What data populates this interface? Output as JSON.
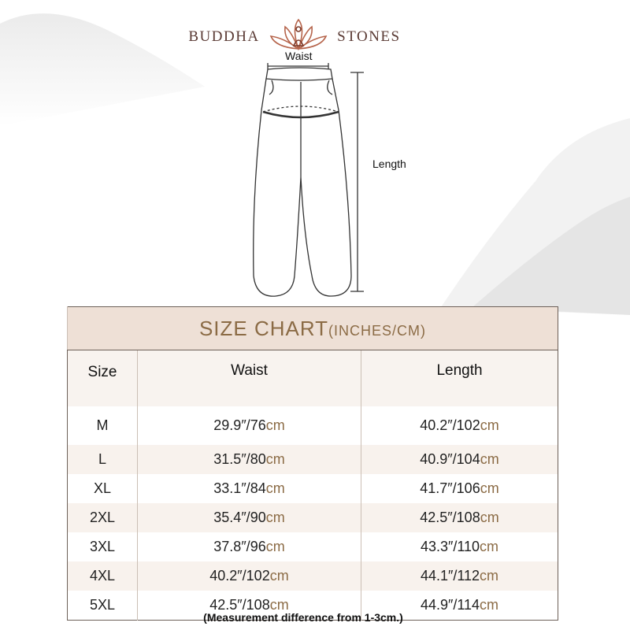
{
  "brand": {
    "left": "BUDDHA",
    "right": "STONES",
    "logo_icon": "lotus-meditation-icon",
    "color": "#5a3a34"
  },
  "diagram": {
    "waist_label": "Waist",
    "length_label": "Length"
  },
  "chart": {
    "title": "SIZE CHART",
    "title_unit": "(INCHES/CM)",
    "accent": "#8b6b45",
    "headers": [
      "Size",
      "Waist",
      "Length"
    ],
    "rows": [
      {
        "size": "M",
        "waist": "29.9″/76",
        "length": "40.2″/102"
      },
      {
        "size": "L",
        "waist": "31.5″/80",
        "length": "40.9″/104"
      },
      {
        "size": "XL",
        "waist": "33.1″/84",
        "length": "41.7″/106"
      },
      {
        "size": "2XL",
        "waist": "35.4″/90",
        "length": "42.5″/108"
      },
      {
        "size": "3XL",
        "waist": "37.8″/96",
        "length": "43.3″/110"
      },
      {
        "size": "4XL",
        "waist": "40.2″/102",
        "length": "44.1″/112"
      },
      {
        "size": "5XL",
        "waist": "42.5″/108",
        "length": "44.9″/114"
      }
    ],
    "unit": "cm"
  },
  "note": "(Measurement difference from 1-3cm.)"
}
